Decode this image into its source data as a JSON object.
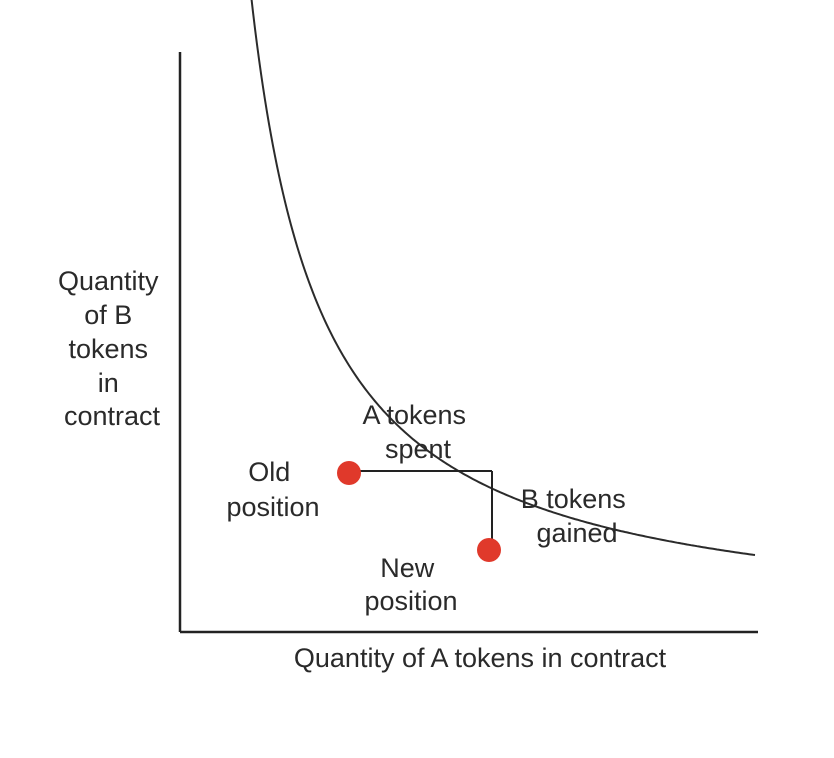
{
  "colors": {
    "axis": "#222222",
    "curve": "#2b2b2b",
    "point": "#e0392b",
    "text": "#2a2a2a",
    "background": "#ffffff"
  },
  "axes": {
    "y_label_lines": [
      "Quantity",
      "of B",
      "tokens",
      "in",
      "contract"
    ],
    "x_label": "Quantity of A tokens in contract"
  },
  "annotations": {
    "a_tokens_spent": [
      "A tokens",
      "spent"
    ],
    "b_tokens_gained": [
      "B tokens",
      "gained"
    ],
    "old_position": [
      "Old",
      "position"
    ],
    "new_position": [
      "New",
      "position"
    ]
  }
}
